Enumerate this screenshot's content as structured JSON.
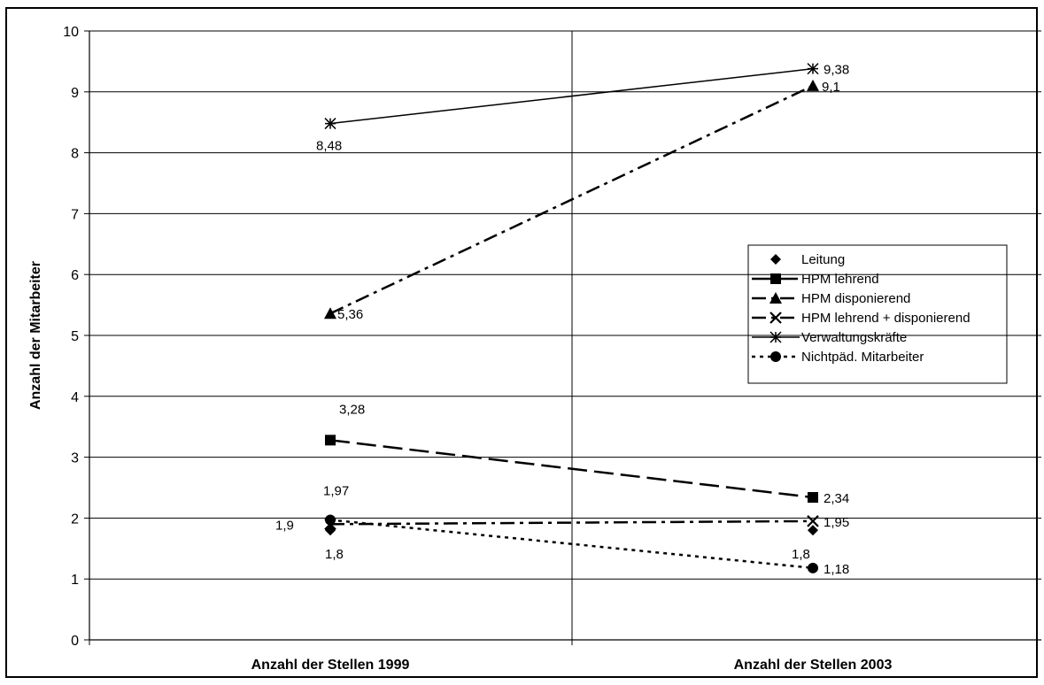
{
  "chart_data": {
    "type": "line",
    "categories": [
      "Anzahl der Stellen 1999",
      "Anzahl der Stellen 2003"
    ],
    "ylabel": "Anzahl der Mitarbeiter",
    "xlabel": "",
    "ylim": [
      0,
      10
    ],
    "yticks": [
      "0",
      "1",
      "2",
      "3",
      "4",
      "5",
      "6",
      "7",
      "8",
      "9",
      "10"
    ],
    "grid": true,
    "legend_position": "right",
    "series": [
      {
        "name": "Leitung",
        "values": [
          1.8,
          1.8
        ],
        "labels": [
          "1,8",
          "1,8"
        ],
        "marker": "diamond",
        "line": "none"
      },
      {
        "name": "HPM lehrend",
        "values": [
          3.28,
          2.34
        ],
        "labels": [
          "3,28",
          "2,34"
        ],
        "marker": "square",
        "line": "long-dash"
      },
      {
        "name": "HPM disponierend",
        "values": [
          5.36,
          9.1
        ],
        "labels": [
          "5,36",
          "9,1"
        ],
        "marker": "triangle",
        "line": "dash-dot"
      },
      {
        "name": "HPM lehrend + disponierend",
        "values": [
          1.9,
          1.95
        ],
        "labels": [
          "1,9",
          "1,95"
        ],
        "marker": "x",
        "line": "dash-dot"
      },
      {
        "name": "Verwaltungskräfte",
        "values": [
          8.48,
          9.38
        ],
        "labels": [
          "8,48",
          "9,38"
        ],
        "marker": "star",
        "line": "solid"
      },
      {
        "name": "Nichtpäd. Mitarbeiter",
        "values": [
          1.97,
          1.18
        ],
        "labels": [
          "1,97",
          "1,18"
        ],
        "marker": "circle",
        "line": "dotted"
      }
    ]
  }
}
